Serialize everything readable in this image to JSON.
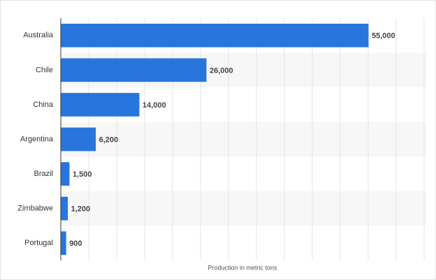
{
  "chart_data": {
    "type": "bar",
    "orientation": "horizontal",
    "categories": [
      "Australia",
      "Chile",
      "China",
      "Argentina",
      "Brazil",
      "Zimbabwe",
      "Portugal"
    ],
    "values": [
      55000,
      26000,
      14000,
      6200,
      1500,
      1200,
      900
    ],
    "value_labels": [
      "55,000",
      "26,000",
      "14,000",
      "6,200",
      "1,500",
      "1,200",
      "900"
    ],
    "color": "#2876dd",
    "xlabel": "Production in metric tons",
    "xlim": [
      0,
      65000
    ],
    "xticks": [
      0,
      5000,
      10000,
      15000,
      20000,
      25000,
      30000,
      35000,
      40000,
      45000,
      50000,
      55000,
      60000,
      65000
    ],
    "grid": true
  }
}
